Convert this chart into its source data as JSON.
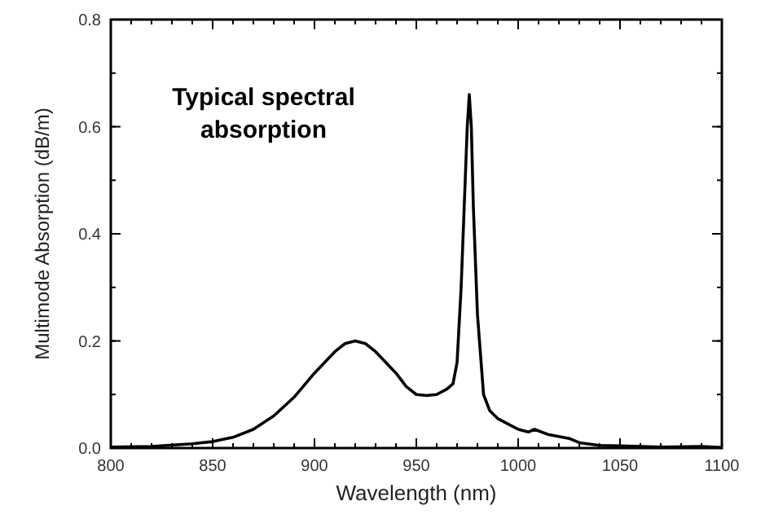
{
  "chart_data": {
    "type": "line",
    "xlabel": "Wavelength (nm)",
    "ylabel": "Multimode Absorption (dB/m)",
    "annotations": [
      "Typical spectral absorption"
    ],
    "xlim": [
      800,
      1100
    ],
    "xticks": [
      800,
      850,
      900,
      950,
      1000,
      1050,
      1100
    ],
    "ylim": [
      0,
      0.8
    ],
    "yticks": [
      {
        "value": 0,
        "label": "0.0"
      },
      0.2,
      0.4,
      0.6,
      0.8
    ],
    "grid": false,
    "marker": "none",
    "line_style": "solid",
    "series": [
      {
        "color": "#000000",
        "x": [
          800,
          820,
          840,
          850,
          860,
          870,
          880,
          890,
          900,
          910,
          915,
          920,
          925,
          930,
          940,
          945,
          950,
          955,
          960,
          965,
          968,
          970,
          972,
          974,
          975,
          976,
          977,
          978,
          980,
          983,
          986,
          990,
          1000,
          1005,
          1008,
          1015,
          1025,
          1030,
          1040,
          1050,
          1070,
          1090,
          1100
        ],
        "values": [
          0.002,
          0.003,
          0.008,
          0.012,
          0.02,
          0.035,
          0.06,
          0.095,
          0.14,
          0.18,
          0.195,
          0.2,
          0.195,
          0.18,
          0.14,
          0.115,
          0.1,
          0.098,
          0.1,
          0.11,
          0.12,
          0.16,
          0.3,
          0.5,
          0.6,
          0.66,
          0.6,
          0.45,
          0.25,
          0.1,
          0.07,
          0.055,
          0.035,
          0.03,
          0.035,
          0.025,
          0.018,
          0.01,
          0.005,
          0.004,
          0.002,
          0.003,
          0.001
        ]
      }
    ]
  }
}
